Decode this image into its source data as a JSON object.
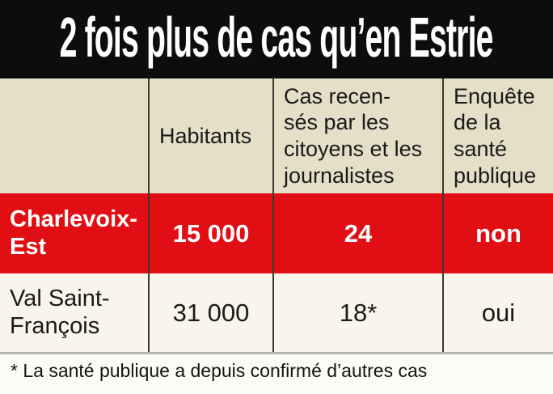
{
  "colors": {
    "title_bar_bg": "#0d0d0c",
    "title_text": "#ffffff",
    "header_bg": "#e5dfc7",
    "highlight_row_bg": "#e10e14",
    "highlight_row_text": "#ffffff",
    "normal_row_bg": "#f9f5ea",
    "divider": "#3b382e",
    "table_bottom_rule": "#b6b5ad",
    "footnote_bg": "#fcfbf6",
    "body_text": "#1a1a1a"
  },
  "chart_data": {
    "type": "table",
    "title": "2 fois plus de cas qu’en Estrie",
    "columns": [
      "",
      "Habitants",
      "Cas recensés par les citoyens et les journalistes",
      "Enquête de la santé publique"
    ],
    "rows": [
      [
        "Charlevoix-Est",
        15000,
        24,
        "non"
      ],
      [
        "Val Saint-François",
        31000,
        18,
        "oui"
      ]
    ],
    "footnote": "* La santé publique a depuis confirmé d’autres cas",
    "notes": "Row Charlevoix-Est highlighted in red with white bold text; the value 18 carries an asterisk referring to the footnote"
  },
  "display": {
    "title": "2 fois plus de cas qu’en Estrie",
    "header": {
      "region": "",
      "habitants": "Habitants",
      "cas": "Cas recen-\nsés par les\ncitoyens et les\njournalistes",
      "enquete": "Enquête\nde la\nsanté\npublique"
    },
    "rows": [
      {
        "region": "Charlevoix-\nEst",
        "habitants": "15 000",
        "cas": "24",
        "enquete": "non"
      },
      {
        "region": "Val Saint-\nFrançois",
        "habitants": "31 000",
        "cas": "18*",
        "enquete": "oui"
      }
    ],
    "footnote": "* La santé publique a depuis confirmé d’autres cas"
  }
}
